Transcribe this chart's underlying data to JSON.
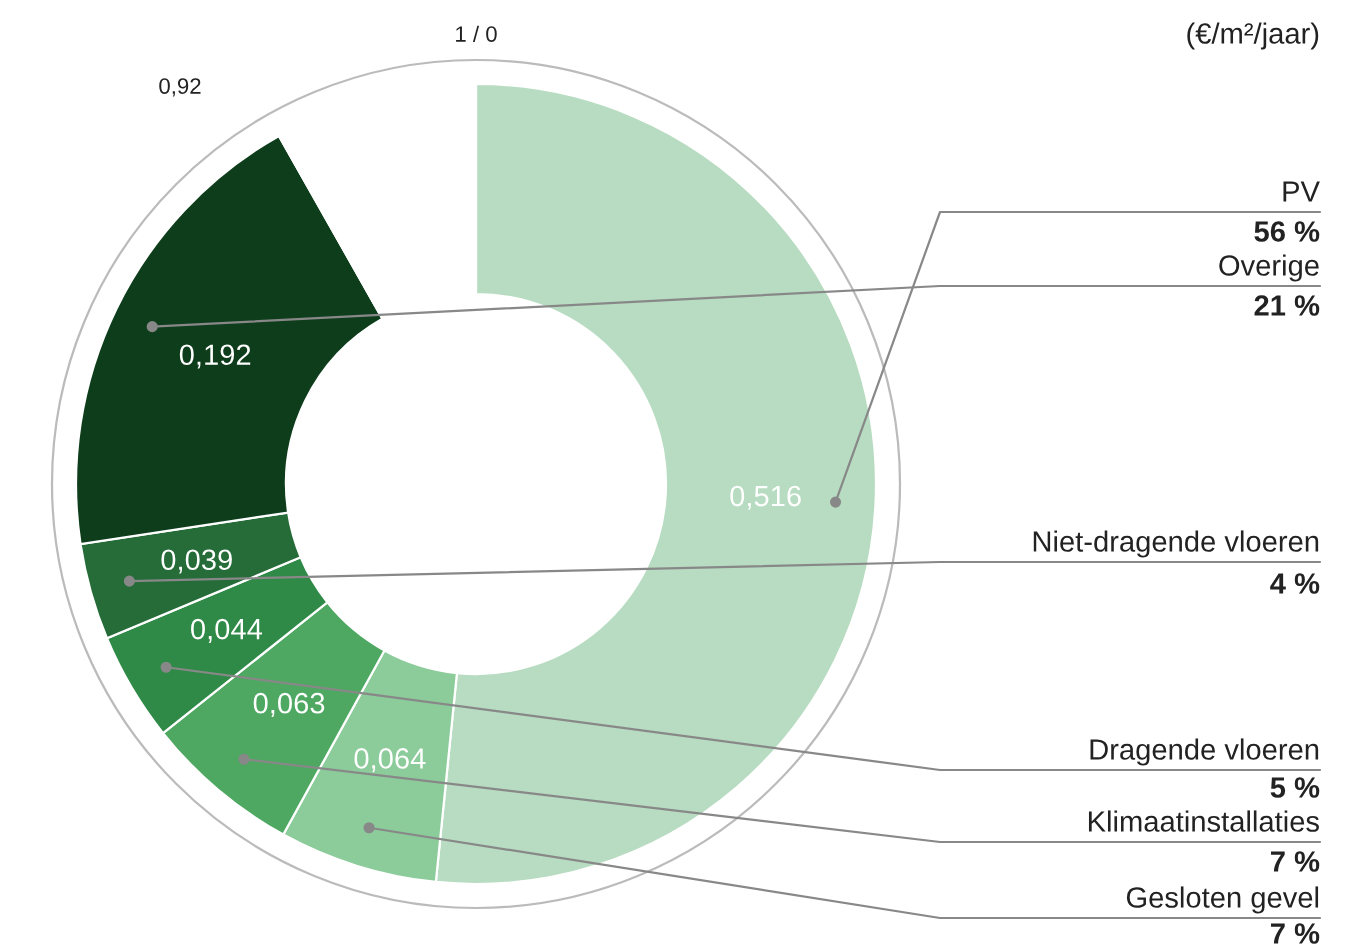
{
  "chart_data": {
    "type": "donut",
    "categories": [
      "PV",
      "Gesloten gevel",
      "Klimaatinstallaties",
      "Dragende vloeren",
      "Niet-dragende vloeren",
      "Overige",
      null
    ],
    "values": [
      0.516,
      0.064,
      0.063,
      0.044,
      0.039,
      0.192,
      0.082
    ],
    "value_labels": [
      "0,516",
      "0,064",
      "0,063",
      "0,044",
      "0,039",
      "0,192",
      null
    ],
    "colors": [
      "#b7dcc1",
      "#8ccb9a",
      "#4ea862",
      "#2f8a47",
      "#256c38",
      "#0e3d1c",
      "#ffffff"
    ],
    "annotations": [
      "(€/m²/jaar)",
      "1 / 0",
      "0,92",
      "56 %",
      "7 %",
      "7 %",
      "5 %",
      "4 %",
      "21 %"
    ],
    "legend": false
  }
}
